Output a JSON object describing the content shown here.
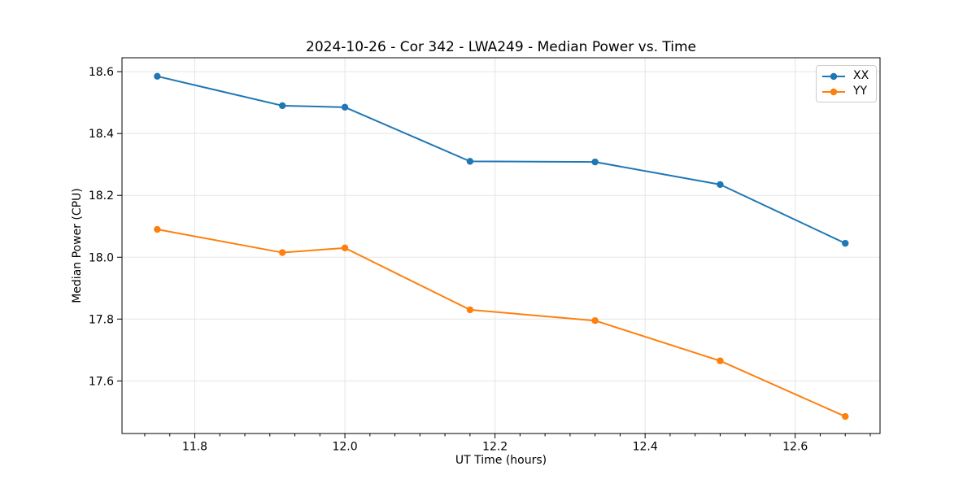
{
  "chart_data": {
    "type": "line",
    "title": "2024-10-26 - Cor 342 - LWA249 - Median Power vs. Time",
    "xlabel": "UT Time (hours)",
    "ylabel": "Median Power (CPU)",
    "x": [
      11.75,
      11.9167,
      12.0,
      12.1667,
      12.3333,
      12.5,
      12.6667
    ],
    "series": [
      {
        "name": "XX",
        "color": "#1f77b4",
        "values": [
          18.585,
          18.49,
          18.485,
          18.31,
          18.308,
          18.235,
          18.045
        ]
      },
      {
        "name": "YY",
        "color": "#ff7f0e",
        "values": [
          18.09,
          18.015,
          18.03,
          17.83,
          17.795,
          17.665,
          17.485
        ]
      }
    ],
    "xlim": [
      11.703,
      12.713
    ],
    "ylim": [
      17.43,
      18.645
    ],
    "xticks": [
      11.8,
      12.0,
      12.2,
      12.4,
      12.6
    ],
    "xtick_labels": [
      "11.8",
      "12.0",
      "12.2",
      "12.4",
      "12.6"
    ],
    "yticks": [
      17.6,
      17.8,
      18.0,
      18.2,
      18.4,
      18.6
    ],
    "ytick_labels": [
      "17.6",
      "17.8",
      "18.0",
      "18.2",
      "18.4",
      "18.6"
    ],
    "x_minor_step": 0.0333333,
    "grid": true,
    "legend_position": "upper right",
    "marker": "circle",
    "colors": {
      "grid": "#e5e5e5",
      "spine": "#000000",
      "tick": "#000000",
      "text": "#000000"
    }
  }
}
